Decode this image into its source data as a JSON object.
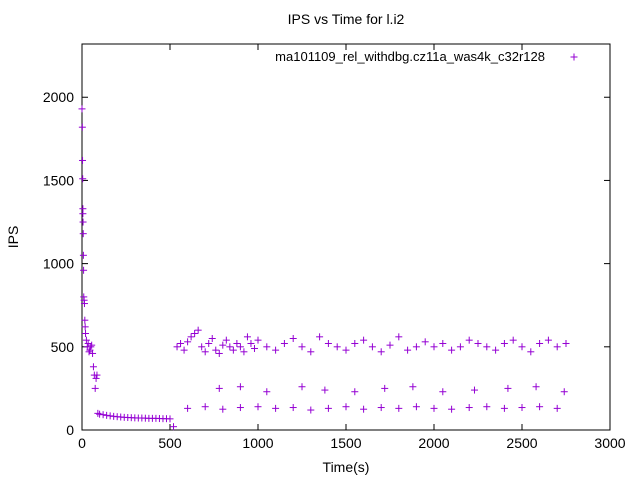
{
  "chart_data": {
    "type": "scatter",
    "title": "IPS vs Time for l.i2",
    "xlabel": "Time(s)",
    "ylabel": "IPS",
    "xlim": [
      0,
      3000
    ],
    "ylim": [
      0,
      2320
    ],
    "xticks": [
      0,
      500,
      1000,
      1500,
      2000,
      2500,
      3000
    ],
    "yticks": [
      0,
      500,
      1000,
      1500,
      2000
    ],
    "legend_position": "top-right",
    "grid": false,
    "marker": "plus",
    "series": [
      {
        "name": "ma101109_rel_withdbg.cz11a_was4k_c32r128",
        "color": "#9400d3",
        "x": [
          0,
          2,
          3,
          4,
          5,
          5,
          6,
          7,
          8,
          9,
          10,
          12,
          14,
          16,
          18,
          20,
          25,
          30,
          35,
          40,
          45,
          50,
          55,
          60,
          65,
          70,
          75,
          80,
          85,
          90,
          100,
          120,
          140,
          160,
          180,
          200,
          220,
          240,
          260,
          280,
          300,
          320,
          340,
          360,
          380,
          400,
          420,
          440,
          460,
          480,
          500,
          520,
          540,
          560,
          580,
          600,
          620,
          640,
          660,
          680,
          700,
          720,
          740,
          760,
          780,
          800,
          820,
          840,
          860,
          880,
          900,
          920,
          940,
          960,
          980,
          1000,
          1050,
          1100,
          1150,
          1200,
          1250,
          1300,
          1350,
          1400,
          1450,
          1500,
          1550,
          1600,
          1650,
          1700,
          1750,
          1800,
          1850,
          1900,
          1950,
          2000,
          2050,
          2100,
          2150,
          2200,
          2250,
          2300,
          2350,
          2400,
          2450,
          2500,
          2550,
          2600,
          2650,
          2700,
          2750,
          600,
          700,
          800,
          900,
          1000,
          1100,
          1200,
          1300,
          1400,
          1500,
          1600,
          1700,
          1800,
          1900,
          2000,
          2100,
          2200,
          2300,
          2400,
          2500,
          2600,
          2700,
          780,
          900,
          1050,
          1250,
          1380,
          1550,
          1720,
          1880,
          2050,
          2230,
          2420,
          2580,
          2740
        ],
        "y": [
          1930,
          1820,
          1620,
          1510,
          1330,
          1300,
          1250,
          1180,
          1050,
          960,
          800,
          780,
          760,
          660,
          620,
          580,
          540,
          500,
          520,
          470,
          480,
          500,
          510,
          460,
          380,
          330,
          250,
          310,
          330,
          100,
          95,
          92,
          88,
          85,
          82,
          80,
          78,
          76,
          75,
          74,
          73,
          72,
          72,
          71,
          70,
          70,
          70,
          69,
          68,
          68,
          67,
          20,
          500,
          520,
          480,
          530,
          560,
          580,
          600,
          500,
          470,
          520,
          550,
          480,
          460,
          510,
          540,
          500,
          480,
          520,
          500,
          470,
          560,
          520,
          490,
          540,
          500,
          480,
          520,
          550,
          500,
          470,
          560,
          520,
          500,
          480,
          520,
          540,
          500,
          470,
          510,
          560,
          480,
          500,
          530,
          500,
          520,
          480,
          500,
          540,
          520,
          500,
          480,
          520,
          540,
          500,
          470,
          520,
          540,
          500,
          520,
          130,
          140,
          125,
          135,
          140,
          130,
          135,
          120,
          130,
          140,
          125,
          135,
          130,
          140,
          130,
          125,
          135,
          140,
          130,
          135,
          140,
          130,
          250,
          260,
          230,
          260,
          240,
          230,
          250,
          260,
          230,
          240,
          250,
          260,
          230
        ]
      }
    ]
  }
}
